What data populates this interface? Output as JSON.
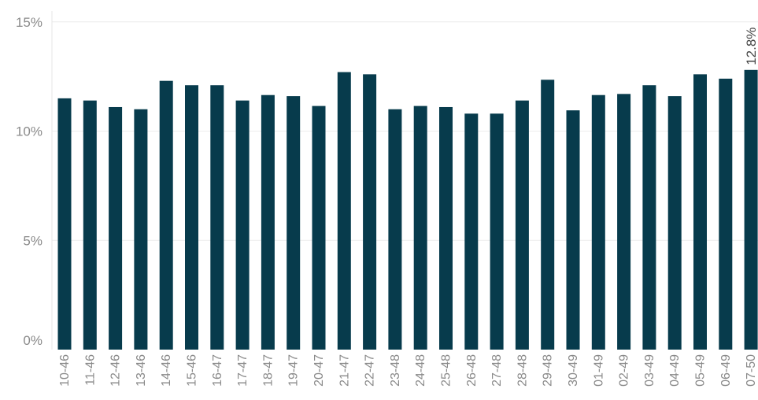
{
  "chart_data": {
    "type": "bar",
    "categories": [
      "10-46",
      "11-46",
      "12-46",
      "13-46",
      "14-46",
      "15-46",
      "16-47",
      "17-47",
      "18-47",
      "19-47",
      "20-47",
      "21-47",
      "22-47",
      "23-48",
      "24-48",
      "25-48",
      "26-48",
      "27-48",
      "28-48",
      "29-48",
      "30-49",
      "01-49",
      "02-49",
      "03-49",
      "04-49",
      "05-49",
      "06-49",
      "07-50"
    ],
    "values": [
      11.5,
      11.4,
      11.1,
      11.0,
      12.3,
      12.1,
      12.1,
      11.4,
      11.65,
      11.6,
      11.15,
      12.7,
      12.6,
      11.0,
      11.15,
      11.1,
      10.8,
      10.8,
      11.4,
      12.35,
      10.95,
      11.65,
      11.7,
      12.1,
      11.6,
      12.6,
      12.4,
      12.8
    ],
    "ylim": [
      0,
      16
    ],
    "yticks": [
      0,
      5,
      10,
      15
    ],
    "ytick_labels": [
      "0%",
      "5%",
      "10%",
      "15%"
    ],
    "data_labels": [
      {
        "category": "07-50",
        "text": "12.8%"
      }
    ],
    "bar_color": "#073b4c",
    "grid": true,
    "title": "",
    "xlabel": "",
    "ylabel": ""
  }
}
